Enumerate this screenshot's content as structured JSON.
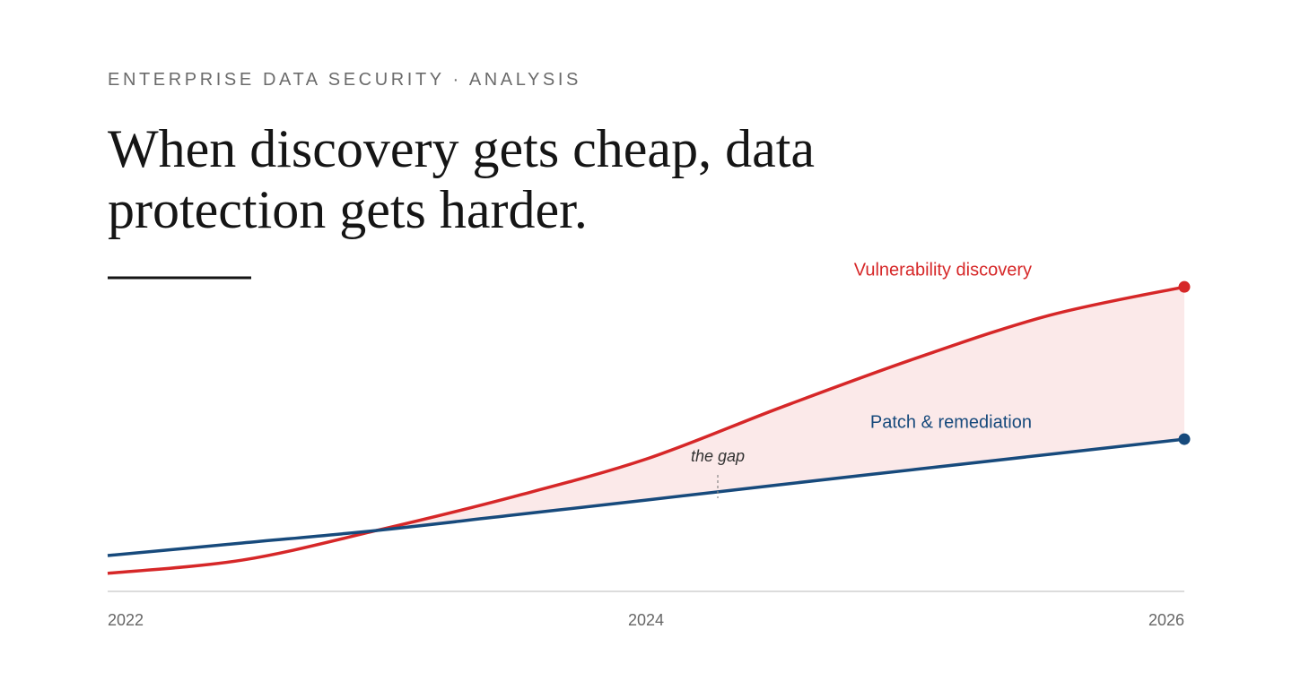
{
  "chart_data": {
    "type": "line",
    "kicker": "ENTERPRISE DATA SECURITY · ANALYSIS",
    "title": "When discovery gets cheap, data protection gets harder.",
    "annotation": "the gap",
    "x": [
      2022,
      2022.5,
      2023,
      2023.5,
      2024,
      2024.5,
      2025,
      2025.5,
      2026
    ],
    "xlim": [
      2022,
      2026
    ],
    "xticks": [
      2022,
      2024,
      2026
    ],
    "ylim": [
      0,
      100
    ],
    "fill_between": true,
    "series": [
      {
        "name": "Vulnerability discovery",
        "color": "#d62728",
        "values": [
          5.6,
          9.7,
          18.9,
          29.2,
          41,
          57,
          72.2,
          85.6,
          94.4
        ]
      },
      {
        "name": "Patch & remediation",
        "color": "#174a7c",
        "values": [
          11.1,
          15.0,
          18.9,
          23.6,
          28.3,
          33.1,
          37.8,
          42.5,
          47.2
        ]
      }
    ]
  }
}
